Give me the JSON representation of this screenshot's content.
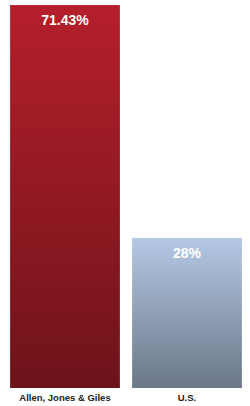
{
  "chart_data": {
    "type": "bar",
    "categories": [
      "Allen, Jones & Giles",
      "U.S."
    ],
    "values": [
      71.43,
      28
    ],
    "value_labels": [
      "71.43%",
      "28%"
    ],
    "colors": [
      "#b51f2b",
      "#b4c8e4"
    ],
    "ylim": [
      0,
      72
    ],
    "data_labels": true,
    "tick_labels": false
  }
}
